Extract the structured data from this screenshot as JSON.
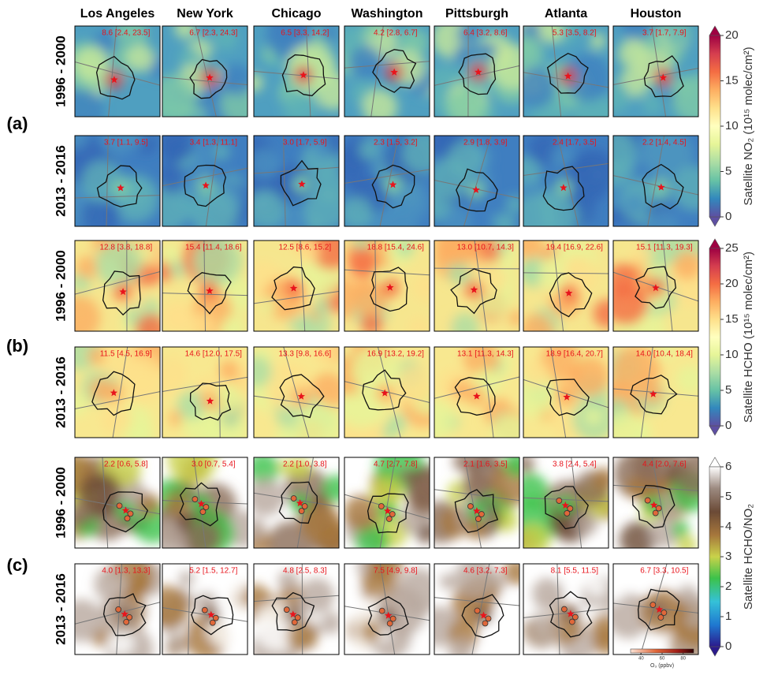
{
  "columns": [
    "Los Angeles",
    "New York",
    "Chicago",
    "Washington",
    "Pittsburgh",
    "Atlanta",
    "Houston"
  ],
  "panels": [
    {
      "label": "(a)",
      "rows": [
        {
          "period": "1996 - 2000",
          "annotations": [
            "8.6 [2.4, 23.5]",
            "6.7 [2.3, 24.3]",
            "6.5 [3.3, 14.2]",
            "4.2 [2.8, 6.7]",
            "6.4 [3.2, 8.6]",
            "5.3 [3.5, 8.2]",
            "3.7 [1.7, 7.9]"
          ]
        },
        {
          "period": "2013 - 2016",
          "annotations": [
            "3.7 [1.1, 9.5]",
            "3.4 [1.3, 11.1]",
            "3.0 [1.7, 5.9]",
            "2.3 [1.5, 3.2]",
            "2.9 [1.8, 3.9]",
            "2.4 [1.7, 3.5]",
            "2.2 [1.4, 4.5]"
          ]
        }
      ],
      "colorbar": {
        "label": "Satellite NO₂ (10¹⁵ molec/cm²)",
        "lim": [
          0,
          20
        ],
        "ticks": [
          0,
          5,
          10,
          15,
          20
        ]
      }
    },
    {
      "label": "(b)",
      "rows": [
        {
          "period": "1996 - 2000",
          "annotations": [
            "12.8 [3.8, 18.8]",
            "15.4 [11.4, 18.6]",
            "12.5 [8.6, 15.2]",
            "18.8 [15.4, 24.6]",
            "13.0 [10.7, 14.3]",
            "19.4 [16.9, 22.6]",
            "15.1 [11.3, 19.3]"
          ]
        },
        {
          "period": "2013 - 2016",
          "annotations": [
            "11.5 [4.5, 16.9]",
            "14.6 [12.0, 17.5]",
            "13.3 [9.8, 16.6]",
            "16.9 [13.2, 19.2]",
            "13.1 [11.3, 14.3]",
            "18.9 [16.4, 20.7]",
            "14.0 [10.4, 18.4]"
          ]
        }
      ],
      "colorbar": {
        "label": "Satellite HCHO (10¹⁵ molec/cm²)",
        "lim": [
          0,
          25
        ],
        "ticks": [
          0,
          5,
          10,
          15,
          20,
          25
        ]
      }
    },
    {
      "label": "(c)",
      "rows": [
        {
          "period": "1996 - 2000",
          "annotations": [
            "2.2 [0.6, 5.8]",
            "3.0 [0.7, 5.4]",
            "2.2 [1.0, 3.8]",
            "4.7 [2.7, 7.8]",
            "2.1 [1.6, 3.5]",
            "3.8 [2.4, 5.4]",
            "4.4 [2.0, 7.6]"
          ]
        },
        {
          "period": "2013 - 2016",
          "annotations": [
            "4.0 [1.3, 13.3]",
            "5.2 [1.5, 12.7]",
            "4.8 [2.5, 8.3]",
            "7.5 [4.9, 9.8]",
            "4.6 [3.2, 7.3]",
            "8.1 [5.5, 11.5]",
            "6.7 [3.3, 10.5]"
          ]
        }
      ],
      "colorbar": {
        "label": "Satellite HCHO/NO₂",
        "lim": [
          0,
          6
        ],
        "ticks": [
          0,
          1,
          2,
          3,
          4,
          5,
          6
        ]
      }
    }
  ],
  "o3_legend": {
    "label": "O₃ (ppbv)",
    "lim": [
      30,
      90
    ],
    "ticks": [
      40,
      60,
      80
    ]
  }
}
